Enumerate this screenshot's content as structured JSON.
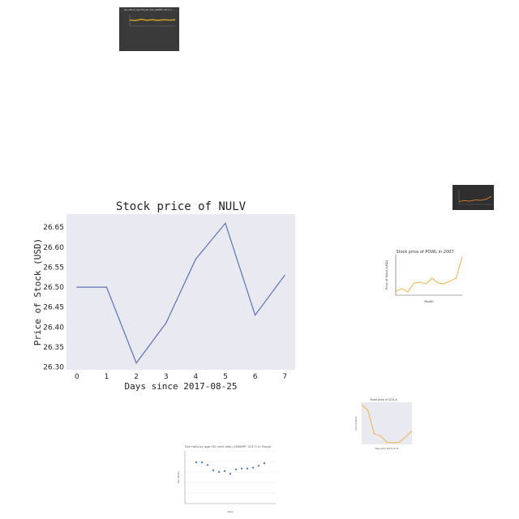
{
  "chart_data": [
    {
      "type": "line",
      "title": "Stock price of NULV",
      "xlabel": "Days since 2017-08-25",
      "ylabel": "Price of Stock (USD)",
      "x": [
        0,
        1,
        2,
        3,
        4,
        5,
        6,
        7
      ],
      "series": [
        {
          "values": [
            26.5,
            26.5,
            26.31,
            26.41,
            26.57,
            26.66,
            26.43,
            26.53
          ]
        }
      ],
      "xlim": [
        -0.35,
        7.35
      ],
      "ylim": [
        26.293,
        26.683
      ],
      "xticks": [
        0,
        1,
        2,
        3,
        4,
        5,
        6,
        7
      ],
      "yticks": [
        "26.30",
        "26.35",
        "26.40",
        "26.45",
        "26.50",
        "26.55",
        "26.60",
        "26.65"
      ],
      "grid": false,
      "colors": {
        "line": "#5a73b6",
        "plot_bg": "#e9e9f2",
        "text": "#222222"
      }
    },
    {
      "type": "line",
      "title": "Sex ratio by age (50 year olds) (UNWPP, 2017) in ...",
      "series": [
        {
          "values": [
            0.52,
            0.47,
            0.58,
            0.5,
            0.55,
            0.49,
            0.56,
            0.51,
            0.54
          ]
        }
      ],
      "colors": {
        "line": "#c9a227",
        "background": "#3a3a3a"
      }
    },
    {
      "type": "line",
      "title": "Stock price of POWL in 2007",
      "xlabel": "Month",
      "ylabel": "Price of Stock (USD)",
      "series": [
        {
          "values": [
            0.1,
            0.16,
            0.08,
            0.3,
            0.32,
            0.28,
            0.42,
            0.3,
            0.28,
            0.35,
            0.42,
            0.95
          ]
        }
      ],
      "colors": {
        "line": "#f2a93b"
      }
    },
    {
      "type": "line",
      "title": "Stock price of SGU_b",
      "xlabel": "Days since 2017-11-11",
      "ylabel": "Price of Stock",
      "series": [
        {
          "values": [
            0.95,
            0.8,
            0.25,
            0.2,
            0.05,
            0.04,
            0.05,
            0.18,
            0.32
          ]
        }
      ],
      "colors": {
        "line": "#f2a93b",
        "plot_bg": "#e9e9f2"
      }
    },
    {
      "type": "scatter",
      "title": "Sex ratio by age (50 year olds) (UNWPP, 2017) in Tonga",
      "xlabel": "Years",
      "ylabel": "Sex Ratio",
      "x": [
        1955,
        1960,
        1965,
        1970,
        1975,
        1980,
        1985,
        1990,
        1995,
        2000,
        2005,
        2010,
        2015
      ],
      "series": [
        {
          "values": [
            107,
            107,
            104,
            98,
            96,
            97,
            94,
            99,
            100,
            100,
            101,
            103,
            106
          ]
        }
      ],
      "colors": {
        "point": "#3b6fb6"
      }
    },
    {
      "type": "line",
      "title": "",
      "series": [
        {
          "values": [
            0.2,
            0.25,
            0.22,
            0.3,
            0.28,
            0.35,
            0.55
          ]
        }
      ],
      "colors": {
        "line": "#f28e2b",
        "background": "#2f2f2f"
      }
    }
  ]
}
